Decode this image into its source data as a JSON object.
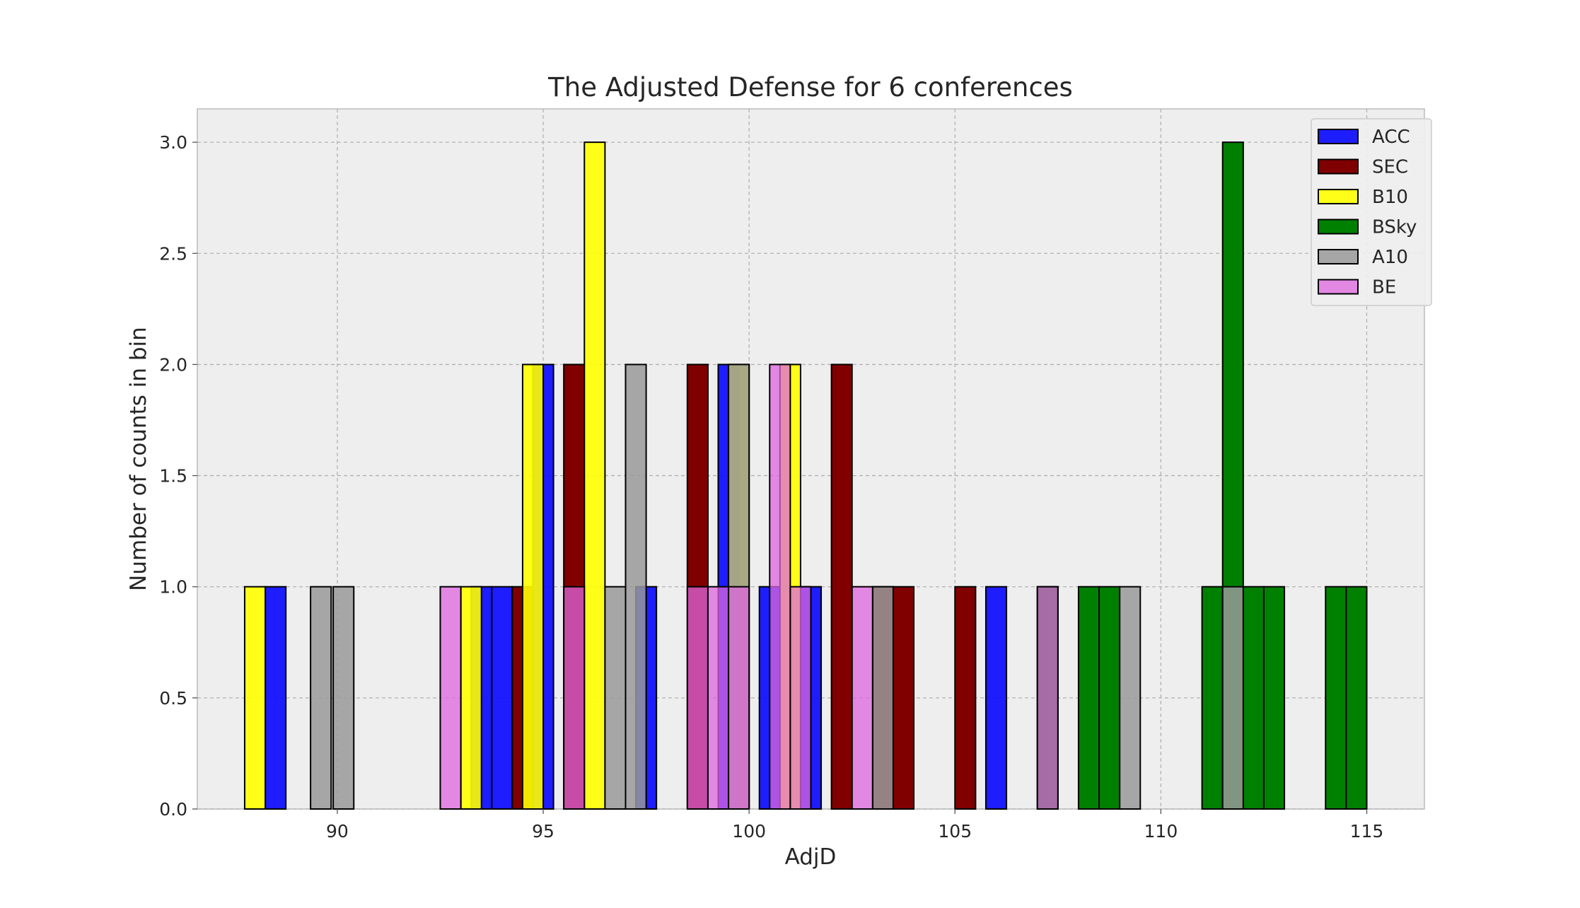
{
  "chart_data": {
    "type": "bar",
    "title": "The Adjusted Defense for 6 conferences",
    "xlabel": "AdjD",
    "ylabel": "Number of counts in bin",
    "xlim": [
      86.6,
      116.4
    ],
    "ylim": [
      0,
      3.15
    ],
    "xticks": [
      90,
      95,
      100,
      105,
      110,
      115
    ],
    "yticks": [
      0.0,
      0.5,
      1.0,
      1.5,
      2.0,
      2.5,
      3.0
    ],
    "grid": true,
    "legend_position": "top-right",
    "bin_width": 0.5,
    "series": [
      {
        "name": "ACC",
        "color": "#0000ff",
        "alpha": 0.88,
        "bins": [
          {
            "x": 88.5,
            "count": 1
          },
          {
            "x": 93.5,
            "count": 1
          },
          {
            "x": 94.0,
            "count": 1
          },
          {
            "x": 95.0,
            "count": 2
          },
          {
            "x": 97.5,
            "count": 1
          },
          {
            "x": 99.5,
            "count": 2
          },
          {
            "x": 100.5,
            "count": 1
          },
          {
            "x": 101.5,
            "count": 1
          },
          {
            "x": 106.0,
            "count": 1
          }
        ]
      },
      {
        "name": "SEC",
        "color": "#800000",
        "alpha": 1.0,
        "bins": [
          {
            "x": 94.5,
            "count": 1
          },
          {
            "x": 95.75,
            "count": 2
          },
          {
            "x": 98.75,
            "count": 2
          },
          {
            "x": 102.25,
            "count": 2
          },
          {
            "x": 103.25,
            "count": 1
          },
          {
            "x": 103.75,
            "count": 1
          },
          {
            "x": 105.25,
            "count": 1
          }
        ]
      },
      {
        "name": "B10",
        "color": "#ffff00",
        "alpha": 0.9,
        "bins": [
          {
            "x": 88.0,
            "count": 1
          },
          {
            "x": 93.25,
            "count": 1
          },
          {
            "x": 94.75,
            "count": 2
          },
          {
            "x": 96.25,
            "count": 3
          },
          {
            "x": 99.75,
            "count": 2
          },
          {
            "x": 101.0,
            "count": 2
          }
        ]
      },
      {
        "name": "BSky",
        "color": "#008000",
        "alpha": 1.0,
        "bins": [
          {
            "x": 107.25,
            "count": 1
          },
          {
            "x": 108.25,
            "count": 1
          },
          {
            "x": 108.75,
            "count": 1
          },
          {
            "x": 111.25,
            "count": 1
          },
          {
            "x": 111.75,
            "count": 3
          },
          {
            "x": 112.25,
            "count": 1
          },
          {
            "x": 112.75,
            "count": 1
          },
          {
            "x": 114.25,
            "count": 1
          },
          {
            "x": 114.75,
            "count": 1
          }
        ]
      },
      {
        "name": "A10",
        "color": "#999999",
        "alpha": 0.85,
        "bins": [
          {
            "x": 89.6,
            "count": 1
          },
          {
            "x": 90.15,
            "count": 1
          },
          {
            "x": 96.75,
            "count": 1
          },
          {
            "x": 97.25,
            "count": 2
          },
          {
            "x": 99.75,
            "count": 2
          },
          {
            "x": 103.25,
            "count": 1
          },
          {
            "x": 109.25,
            "count": 1
          },
          {
            "x": 111.75,
            "count": 1
          }
        ]
      },
      {
        "name": "BE",
        "color": "#dd66dd",
        "alpha": 0.75,
        "bins": [
          {
            "x": 92.75,
            "count": 1
          },
          {
            "x": 95.75,
            "count": 1
          },
          {
            "x": 98.75,
            "count": 1
          },
          {
            "x": 99.25,
            "count": 1
          },
          {
            "x": 99.75,
            "count": 1
          },
          {
            "x": 100.75,
            "count": 2
          },
          {
            "x": 101.25,
            "count": 1
          },
          {
            "x": 102.75,
            "count": 1
          },
          {
            "x": 107.25,
            "count": 1
          }
        ]
      }
    ]
  }
}
